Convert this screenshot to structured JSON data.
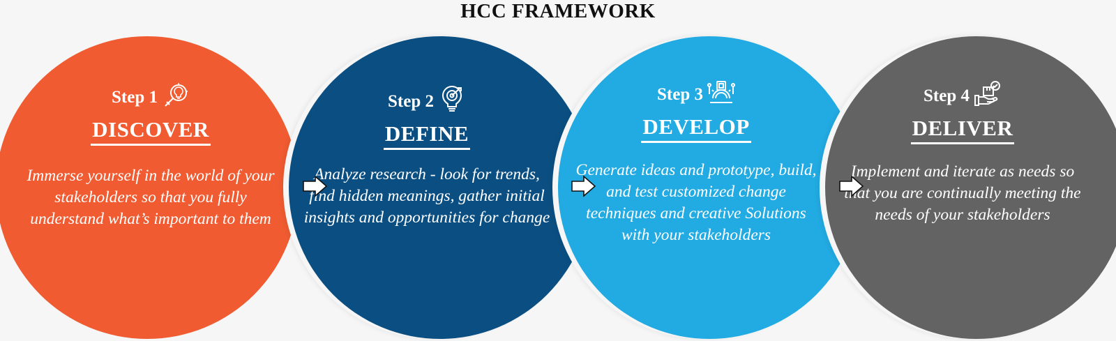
{
  "title": "HCC FRAMEWORK",
  "steps": [
    {
      "step_label": "Step 1",
      "heading": "DISCOVER",
      "description": "Immerse yourself in the world of your stakeholders so that you fully understand what’s important to them",
      "icon": "idea-magnifier-icon",
      "color": "#f05b31"
    },
    {
      "step_label": "Step 2",
      "heading": "DEFINE",
      "description": "Analyze research - look for trends,  find hidden meanings, gather initial insights and opportunities for change",
      "icon": "target-bulb-icon",
      "color": "#0b4f82"
    },
    {
      "step_label": "Step 3",
      "heading": "DEVELOP",
      "description": "Generate ideas and prototype, build, and test customized change techniques and creative Solutions with your stakeholders",
      "icon": "gear-build-icon",
      "color": "#22aae2"
    },
    {
      "step_label": "Step 4",
      "heading": "DELIVER",
      "description": "Implement and iterate as needs so that you are continually meeting the needs of your stakeholders",
      "icon": "hand-box-check-icon",
      "color": "#636363"
    }
  ]
}
